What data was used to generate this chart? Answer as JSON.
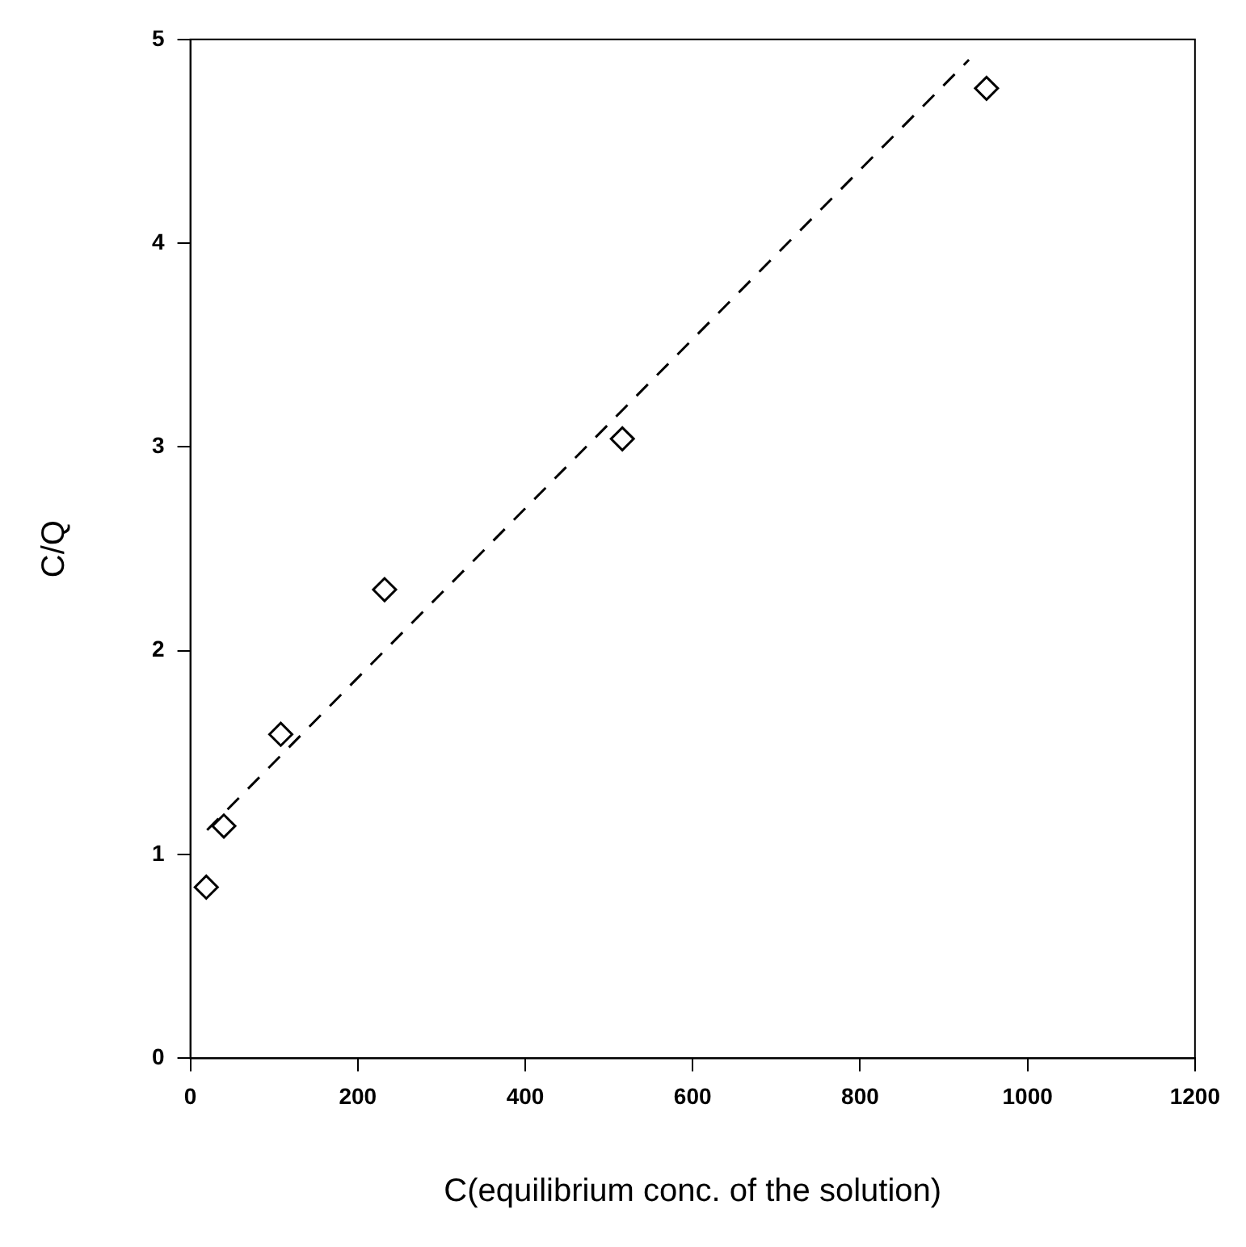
{
  "chart_data": {
    "type": "scatter",
    "xlabel": "C(equilibrium conc. of the solution)",
    "ylabel": "C/Q",
    "xlim": [
      0,
      1200
    ],
    "xticks": [
      0,
      200,
      400,
      600,
      800,
      1000,
      1200
    ],
    "ylim": [
      0,
      5
    ],
    "yticks": [
      0,
      1,
      2,
      3,
      4,
      5
    ],
    "grid": false,
    "legend": false,
    "series": [
      {
        "type": "scatter",
        "color": "#000000",
        "marker": "diamond",
        "x": [
          19,
          40,
          108,
          232,
          516,
          951
        ],
        "values": [
          0.84,
          1.14,
          1.59,
          2.3,
          3.04,
          4.76
        ]
      },
      {
        "type": "line",
        "color": "#000000",
        "marker": "none",
        "line_style": "dashed",
        "x": [
          20,
          930
        ],
        "values": [
          1.12,
          4.9
        ]
      }
    ]
  }
}
